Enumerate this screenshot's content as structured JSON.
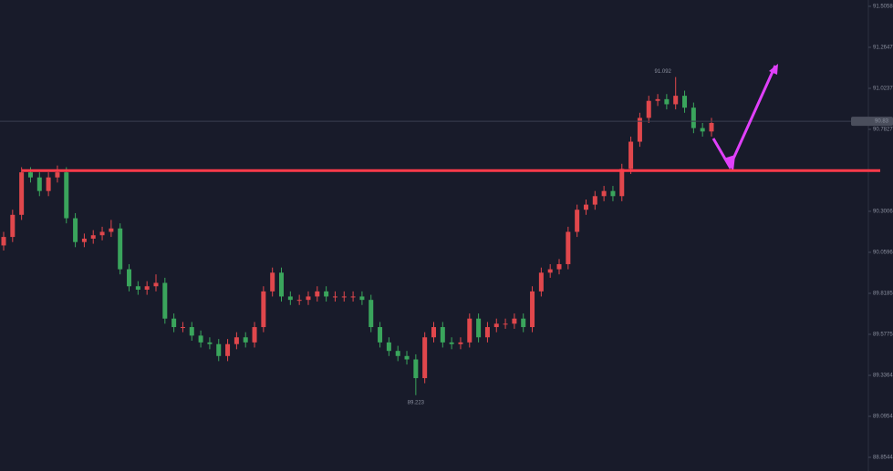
{
  "chart_data": {
    "type": "candlestick",
    "open": [
      90.1,
      90.15,
      90.28,
      90.53,
      90.5,
      90.42,
      90.5,
      90.53,
      90.26,
      90.12,
      90.14,
      90.16,
      90.18,
      90.2,
      89.96,
      89.86,
      89.84,
      89.86,
      89.88,
      89.67,
      89.62,
      89.62,
      89.57,
      89.53,
      89.52,
      89.45,
      89.52,
      89.56,
      89.53,
      89.62,
      89.83,
      89.94,
      89.8,
      89.78,
      89.78,
      89.8,
      89.83,
      89.8,
      89.8,
      89.8,
      89.8,
      89.78,
      89.62,
      89.53,
      89.48,
      89.45,
      89.43,
      89.32,
      89.56,
      89.62,
      89.53,
      89.52,
      89.53,
      89.67,
      89.56,
      89.62,
      89.64,
      89.64,
      89.67,
      89.62,
      89.83,
      89.94,
      89.96,
      89.99,
      90.18,
      90.31,
      90.34,
      90.39,
      90.42,
      90.39,
      90.55,
      90.71,
      90.85,
      90.95,
      90.96,
      90.93,
      90.98,
      90.91,
      90.79,
      90.77
    ],
    "high": [
      90.18,
      90.31,
      90.56,
      90.56,
      90.53,
      90.53,
      90.57,
      90.56,
      90.29,
      90.17,
      90.19,
      90.21,
      90.25,
      90.23,
      89.99,
      89.89,
      89.89,
      89.93,
      89.91,
      89.7,
      89.65,
      89.65,
      89.6,
      89.56,
      89.55,
      89.55,
      89.59,
      89.59,
      89.65,
      89.86,
      89.97,
      89.97,
      89.83,
      89.81,
      89.83,
      89.86,
      89.86,
      89.83,
      89.83,
      89.83,
      89.83,
      89.81,
      89.65,
      89.56,
      89.51,
      89.48,
      89.46,
      89.59,
      89.65,
      89.65,
      89.56,
      89.56,
      89.7,
      89.7,
      89.65,
      89.67,
      89.67,
      89.7,
      89.7,
      89.86,
      89.97,
      89.99,
      90.02,
      90.21,
      90.34,
      90.37,
      90.42,
      90.45,
      90.45,
      90.58,
      90.74,
      90.88,
      90.98,
      90.99,
      90.99,
      91.09,
      91.01,
      90.94,
      90.82,
      90.85
    ],
    "low": [
      90.07,
      90.12,
      90.25,
      90.47,
      90.39,
      90.39,
      90.47,
      90.23,
      90.09,
      90.09,
      90.11,
      90.13,
      90.15,
      89.93,
      89.83,
      89.81,
      89.81,
      89.83,
      89.64,
      89.59,
      89.59,
      89.54,
      89.5,
      89.49,
      89.42,
      89.42,
      89.49,
      89.5,
      89.5,
      89.59,
      89.8,
      89.77,
      89.75,
      89.75,
      89.75,
      89.77,
      89.77,
      89.77,
      89.77,
      89.77,
      89.75,
      89.59,
      89.5,
      89.45,
      89.42,
      89.4,
      89.22,
      89.29,
      89.53,
      89.5,
      89.49,
      89.49,
      89.5,
      89.53,
      89.53,
      89.59,
      89.61,
      89.61,
      89.59,
      89.59,
      89.8,
      89.91,
      89.93,
      89.96,
      90.15,
      90.28,
      90.31,
      90.36,
      90.36,
      90.36,
      90.52,
      90.68,
      90.82,
      90.92,
      90.9,
      90.9,
      90.88,
      90.76,
      90.74,
      90.74
    ],
    "close": [
      90.15,
      90.28,
      90.53,
      90.5,
      90.42,
      90.5,
      90.53,
      90.26,
      90.12,
      90.14,
      90.16,
      90.18,
      90.2,
      89.96,
      89.86,
      89.84,
      89.86,
      89.88,
      89.67,
      89.62,
      89.62,
      89.57,
      89.53,
      89.52,
      89.45,
      89.52,
      89.56,
      89.53,
      89.62,
      89.83,
      89.94,
      89.8,
      89.78,
      89.78,
      89.8,
      89.83,
      89.8,
      89.8,
      89.8,
      89.8,
      89.78,
      89.62,
      89.53,
      89.48,
      89.45,
      89.43,
      89.32,
      89.56,
      89.62,
      89.53,
      89.52,
      89.53,
      89.67,
      89.56,
      89.62,
      89.64,
      89.64,
      89.67,
      89.62,
      89.83,
      89.94,
      89.96,
      89.99,
      90.18,
      90.31,
      90.34,
      90.39,
      90.42,
      90.39,
      90.55,
      90.71,
      90.85,
      90.95,
      90.96,
      90.93,
      90.98,
      90.91,
      90.79,
      90.77,
      90.82
    ],
    "up_color": "#e0474c",
    "down_color": "#3aa55c",
    "ylim": [
      88.774,
      91.543
    ],
    "yticks": [
      88.8544,
      89.0954,
      89.3364,
      89.5775,
      89.8185,
      90.0596,
      90.3006,
      90.7827,
      91.0237,
      91.2647,
      91.5058
    ],
    "hline": {
      "value": 90.54,
      "color": "#ff3b4a"
    },
    "last_price": 90.83,
    "max_label": "91.092",
    "min_label": "89.223"
  }
}
